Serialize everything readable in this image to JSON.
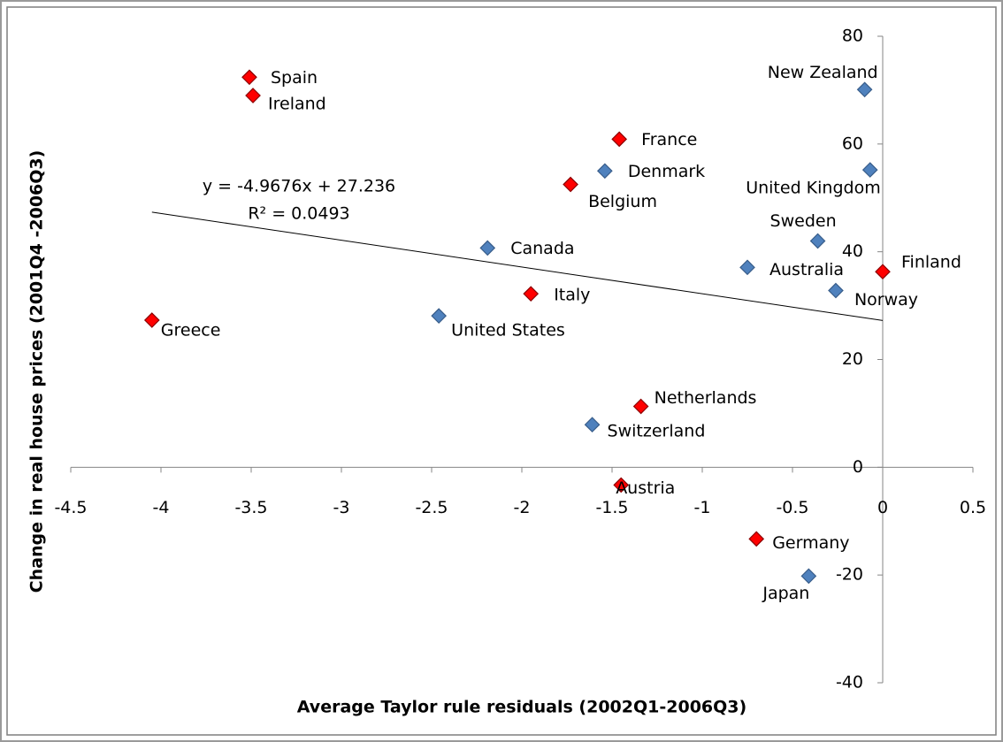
{
  "chart_data": {
    "type": "scatter",
    "x_label": "Average Taylor rule residuals (2002Q1-2006Q3)",
    "y_label": "Change in real house prices (2001Q4 -2006Q3)",
    "xlim": [
      -4.5,
      0.5
    ],
    "xticks": [
      -4.5,
      -4,
      -3.5,
      -3,
      -2.5,
      -2,
      -1.5,
      -1,
      -0.5,
      0,
      0.5
    ],
    "ylim": [
      -40,
      80
    ],
    "yticks": [
      -40,
      -20,
      0,
      20,
      40,
      60,
      80
    ],
    "series": [
      {
        "color": "#ff0000",
        "point_labels": [
          "Spain",
          "Ireland",
          "France",
          "Belgium",
          "Finland",
          "Italy",
          "Greece",
          "Netherlands",
          "Austria",
          "Germany"
        ],
        "x": [
          -3.51,
          -3.49,
          -1.46,
          -1.73,
          0.0,
          -1.95,
          -4.05,
          -1.34,
          -1.45,
          -0.7
        ],
        "values": [
          72.4,
          69.0,
          60.9,
          52.5,
          36.3,
          32.2,
          27.3,
          11.3,
          -3.3,
          -13.3
        ]
      },
      {
        "color": "#4f81bd",
        "point_labels": [
          "New Zealand",
          "United Kingdom",
          "Denmark",
          "Sweden",
          "Canada",
          "Australia",
          "Norway",
          "United States",
          "Switzerland",
          "Japan"
        ],
        "x": [
          -0.1,
          -0.07,
          -1.54,
          -0.36,
          -2.19,
          -0.75,
          -0.26,
          -2.46,
          -1.61,
          -0.41
        ],
        "values": [
          70.1,
          55.2,
          55.0,
          42.0,
          40.7,
          37.1,
          32.8,
          28.1,
          7.9,
          -20.2
        ]
      }
    ],
    "trendline": {
      "slope": -4.9676,
      "intercept": 27.236,
      "equation": "y = -4.9676x + 27.236",
      "r_squared": "R² = 0.0493"
    }
  }
}
